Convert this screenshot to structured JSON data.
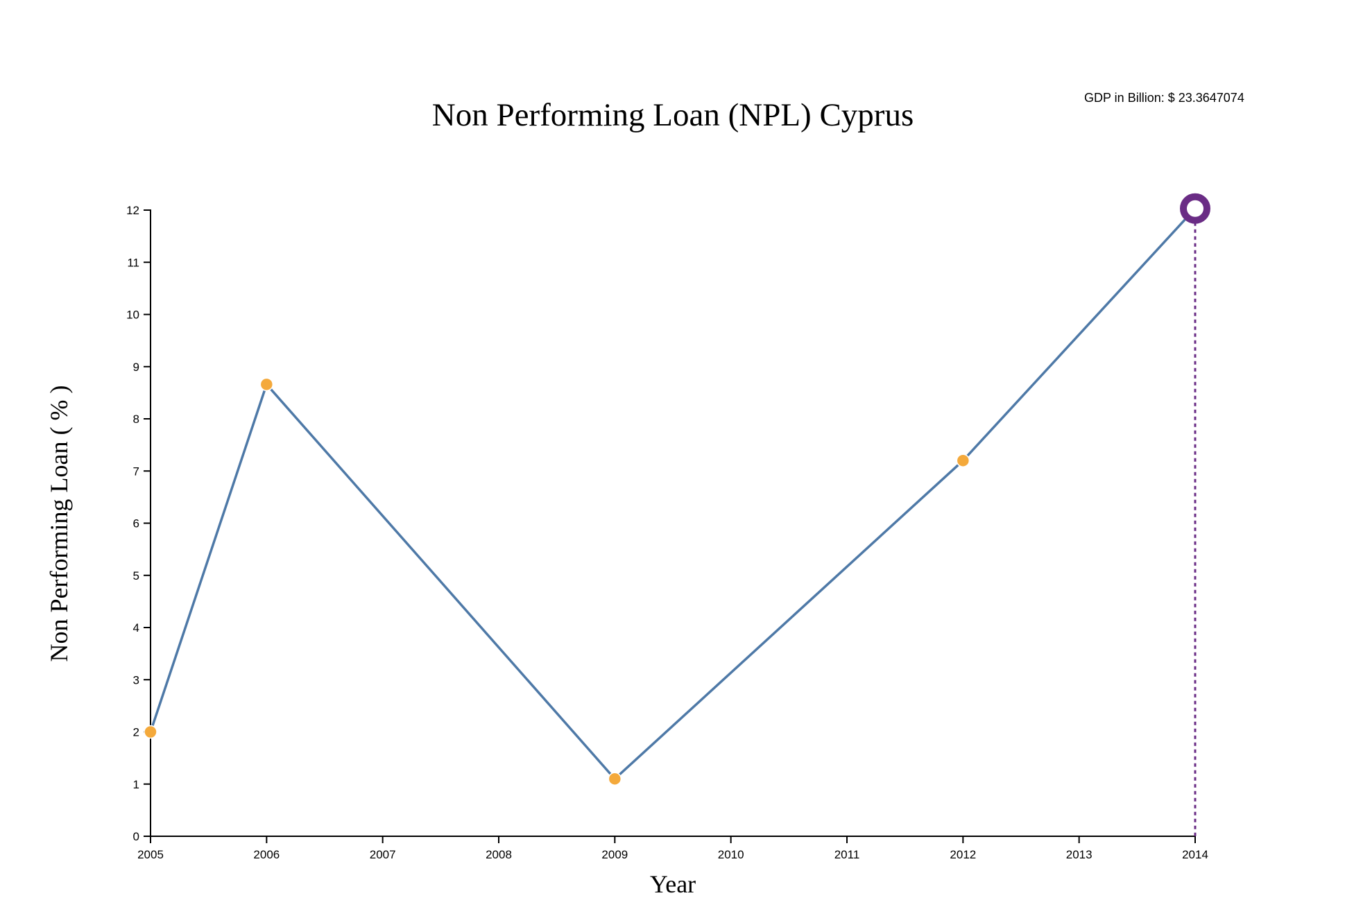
{
  "chart_data": {
    "type": "line",
    "title": "Non Performing Loan (NPL) Cyprus",
    "xlabel": "Year",
    "ylabel": "Non Performing Loan ( % )",
    "x": [
      2005,
      2006,
      2009,
      2012,
      2014
    ],
    "series": [
      {
        "values": [
          2.0,
          8.66,
          1.1,
          7.2,
          12.03
        ]
      }
    ],
    "xlim": [
      2005,
      2014
    ],
    "ylim": [
      0,
      12
    ],
    "xticks": [
      "2005",
      "2006",
      "2007",
      "2008",
      "2009",
      "2010",
      "2011",
      "2012",
      "2013",
      "2014"
    ],
    "yticks": [
      "0",
      "1",
      "2",
      "3",
      "4",
      "5",
      "6",
      "7",
      "8",
      "9",
      "10",
      "11",
      "12"
    ],
    "grid": false,
    "highlight_index": 4,
    "tooltip": "GDP in Billion: $ 23.3647074",
    "colors": {
      "line": "#4e79a7",
      "point": "#f4a93b",
      "highlight": "#6a2c85",
      "guide": "#6a2c85"
    }
  }
}
